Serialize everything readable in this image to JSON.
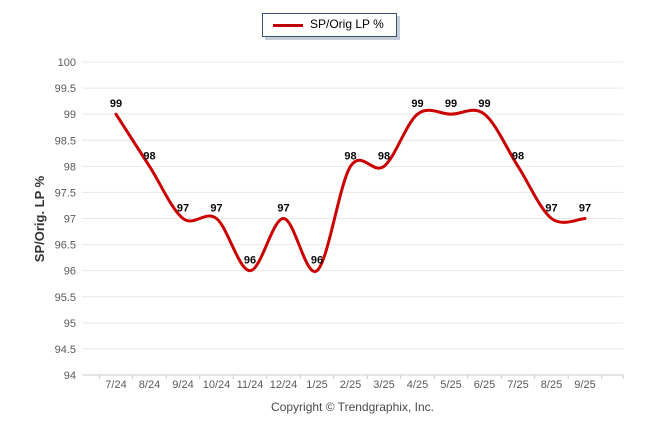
{
  "legend": {
    "label": "SP/Orig LP %"
  },
  "footer": {
    "copyright": "Copyright © Trendgraphix, Inc."
  },
  "chart_data": {
    "type": "line",
    "title": "",
    "categories": [
      "7/24",
      "8/24",
      "9/24",
      "10/24",
      "11/24",
      "12/24",
      "1/25",
      "2/25",
      "3/25",
      "4/25",
      "5/25",
      "6/25",
      "7/25",
      "8/25",
      "9/25"
    ],
    "series": [
      {
        "name": "SP/Orig LP %",
        "color": "#cc0000",
        "values": [
          99,
          98,
          97,
          97,
          96,
          97,
          96,
          98,
          98,
          99,
          99,
          99,
          98,
          97,
          97
        ]
      }
    ],
    "data_labels": [
      99,
      98,
      97,
      97,
      96,
      97,
      96,
      98,
      98,
      99,
      99,
      99,
      98,
      97,
      97
    ],
    "xlabel": "",
    "ylabel": "SP/Orig. LP %",
    "ylim": [
      94,
      100
    ],
    "ytick_step": 0.5,
    "ytick_labels": [
      "94",
      "94.5",
      "95",
      "95.5",
      "96",
      "96.5",
      "97",
      "97.5",
      "98",
      "98.5",
      "99",
      "99.5",
      "100"
    ],
    "grid": "horizontal",
    "line_smoothing": "spline",
    "legend_position": "top-center"
  },
  "colors": {
    "line": "#cc0000",
    "grid": "#e8e8e8",
    "axis": "#c9c9c9",
    "tick_text": "#595959",
    "data_label": "#0a0a0a",
    "legend_border": "#39516b",
    "legend_shadow": "#c5ced8",
    "copyright_text": "#4a4a4a"
  }
}
